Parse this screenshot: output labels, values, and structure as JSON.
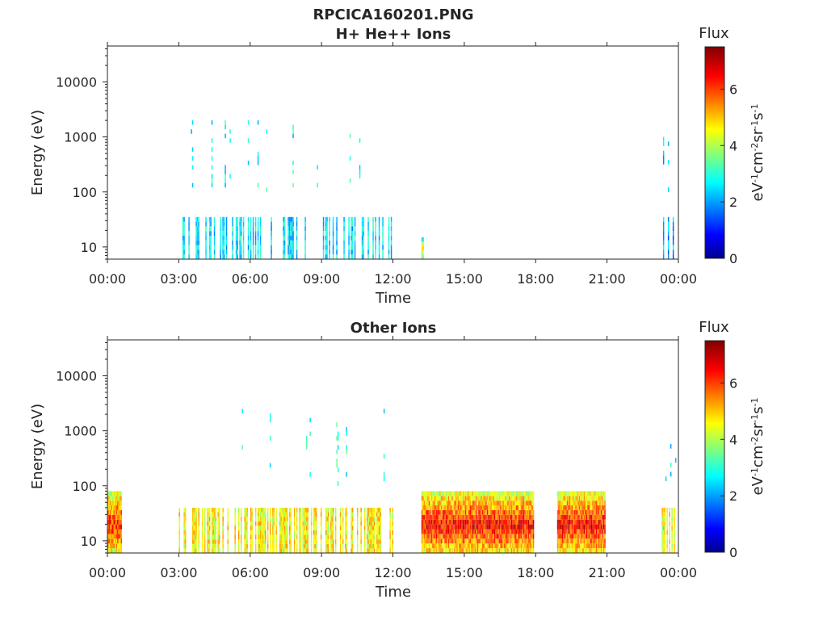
{
  "figure_title": "RPCICA160201.PNG",
  "chart_data": [
    {
      "type": "heatmap",
      "title": "H+ He++ Ions",
      "xlabel": "Time",
      "ylabel": "Energy (eV)",
      "y_scale": "log",
      "ylim": [
        6,
        45000
      ],
      "x_range_hours": [
        0,
        24
      ],
      "x_tick_labels": [
        "00:00",
        "03:00",
        "06:00",
        "09:00",
        "12:00",
        "15:00",
        "18:00",
        "21:00",
        "00:00"
      ],
      "y_tick_labels": [
        "10",
        "100",
        "1000",
        "10000"
      ],
      "colorbar": {
        "label": "Flux",
        "units": "eV-1cm-2sr-1s-1",
        "range": [
          0,
          7.5
        ],
        "ticks": [
          "0",
          "2",
          "4",
          "6"
        ],
        "colormap": "jet"
      },
      "regions": [
        {
          "start_hour": 3.1,
          "end_hour": 12.0,
          "emin": 6,
          "emax": 35,
          "flux": 2.5,
          "density": 0.35
        },
        {
          "start_hour": 3.2,
          "end_hour": 11.8,
          "emin": 100,
          "emax": 2000,
          "flux": 2.8,
          "density": 0.05
        },
        {
          "start_hour": 13.2,
          "end_hour": 13.3,
          "emin": 6,
          "emax": 15,
          "flux": 4.5,
          "density": 1.0
        },
        {
          "start_hour": 23.3,
          "end_hour": 23.9,
          "emin": 6,
          "emax": 35,
          "flux": 2.0,
          "density": 0.35
        },
        {
          "start_hour": 23.3,
          "end_hour": 23.9,
          "emin": 100,
          "emax": 1000,
          "flux": 2.5,
          "density": 0.06
        }
      ]
    },
    {
      "type": "heatmap",
      "title": "Other Ions",
      "xlabel": "Time",
      "ylabel": "Energy (eV)",
      "y_scale": "log",
      "ylim": [
        6,
        45000
      ],
      "x_range_hours": [
        0,
        24
      ],
      "x_tick_labels": [
        "00:00",
        "03:00",
        "06:00",
        "09:00",
        "12:00",
        "15:00",
        "18:00",
        "21:00",
        "00:00"
      ],
      "y_tick_labels": [
        "10",
        "100",
        "1000",
        "10000"
      ],
      "colorbar": {
        "label": "Flux",
        "units": "eV-1cm-2sr-1s-1",
        "range": [
          0,
          7.5
        ],
        "ticks": [
          "0",
          "2",
          "4",
          "6"
        ],
        "colormap": "jet"
      },
      "regions": [
        {
          "start_hour": 0.0,
          "end_hour": 0.6,
          "emin": 6,
          "emax": 80,
          "flux": 6.2,
          "density": 1.0
        },
        {
          "start_hour": 3.0,
          "end_hour": 12.0,
          "emin": 6,
          "emax": 40,
          "flux": 4.6,
          "density": 0.6
        },
        {
          "start_hour": 3.0,
          "end_hour": 12.0,
          "emin": 100,
          "emax": 2500,
          "flux": 2.8,
          "density": 0.05
        },
        {
          "start_hour": 13.2,
          "end_hour": 17.9,
          "emin": 6,
          "emax": 80,
          "flux": 6.5,
          "density": 1.0
        },
        {
          "start_hour": 18.9,
          "end_hour": 20.9,
          "emin": 6,
          "emax": 80,
          "flux": 6.5,
          "density": 1.0
        },
        {
          "start_hour": 23.3,
          "end_hour": 23.9,
          "emin": 6,
          "emax": 40,
          "flux": 4.5,
          "density": 0.6
        },
        {
          "start_hour": 23.3,
          "end_hour": 23.9,
          "emin": 100,
          "emax": 700,
          "flux": 2.5,
          "density": 0.06
        }
      ]
    }
  ]
}
